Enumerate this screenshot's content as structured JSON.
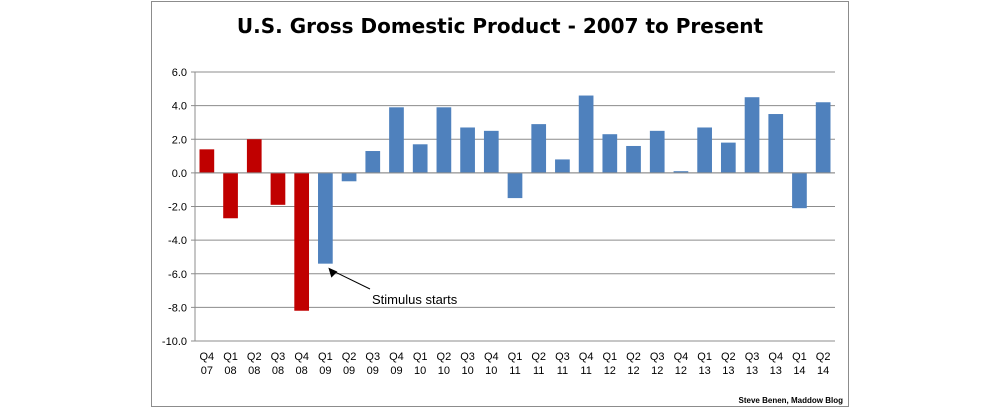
{
  "chart_data": {
    "type": "bar",
    "title": "U.S. Gross Domestic Product - 2007 to Present",
    "xlabel": "",
    "ylabel": "",
    "ylim": [
      -10.0,
      6.0
    ],
    "yticks": [
      "6.0",
      "4.0",
      "2.0",
      "0.0",
      "-2.0",
      "-4.0",
      "-6.0",
      "-8.0",
      "-10.0"
    ],
    "grid": true,
    "categories": [
      [
        "Q4",
        "07"
      ],
      [
        "Q1",
        "08"
      ],
      [
        "Q2",
        "08"
      ],
      [
        "Q3",
        "08"
      ],
      [
        "Q4",
        "08"
      ],
      [
        "Q1",
        "09"
      ],
      [
        "Q2",
        "09"
      ],
      [
        "Q3",
        "09"
      ],
      [
        "Q4",
        "09"
      ],
      [
        "Q1",
        "10"
      ],
      [
        "Q2",
        "10"
      ],
      [
        "Q3",
        "10"
      ],
      [
        "Q4",
        "10"
      ],
      [
        "Q1",
        "11"
      ],
      [
        "Q2",
        "11"
      ],
      [
        "Q3",
        "11"
      ],
      [
        "Q4",
        "11"
      ],
      [
        "Q1",
        "12"
      ],
      [
        "Q2",
        "12"
      ],
      [
        "Q3",
        "12"
      ],
      [
        "Q4",
        "12"
      ],
      [
        "Q1",
        "13"
      ],
      [
        "Q2",
        "13"
      ],
      [
        "Q3",
        "13"
      ],
      [
        "Q4",
        "13"
      ],
      [
        "Q1",
        "14"
      ],
      [
        "Q2",
        "14"
      ]
    ],
    "values": [
      1.4,
      -2.7,
      2.0,
      -1.9,
      -8.2,
      -5.4,
      -0.5,
      1.3,
      3.9,
      1.7,
      3.9,
      2.7,
      2.5,
      -1.5,
      2.9,
      0.8,
      4.6,
      2.3,
      1.6,
      2.5,
      0.1,
      2.7,
      1.8,
      4.5,
      3.5,
      -2.1,
      4.2
    ],
    "colors": [
      "#c00000",
      "#c00000",
      "#c00000",
      "#c00000",
      "#c00000",
      "#4f81bd",
      "#4f81bd",
      "#4f81bd",
      "#4f81bd",
      "#4f81bd",
      "#4f81bd",
      "#4f81bd",
      "#4f81bd",
      "#4f81bd",
      "#4f81bd",
      "#4f81bd",
      "#4f81bd",
      "#4f81bd",
      "#4f81bd",
      "#4f81bd",
      "#4f81bd",
      "#4f81bd",
      "#4f81bd",
      "#4f81bd",
      "#4f81bd",
      "#4f81bd",
      "#4f81bd"
    ],
    "annotations": [
      {
        "text": "Stimulus starts",
        "category_index": 5
      }
    ],
    "credit": "Steve Benen, Maddow Blog"
  }
}
